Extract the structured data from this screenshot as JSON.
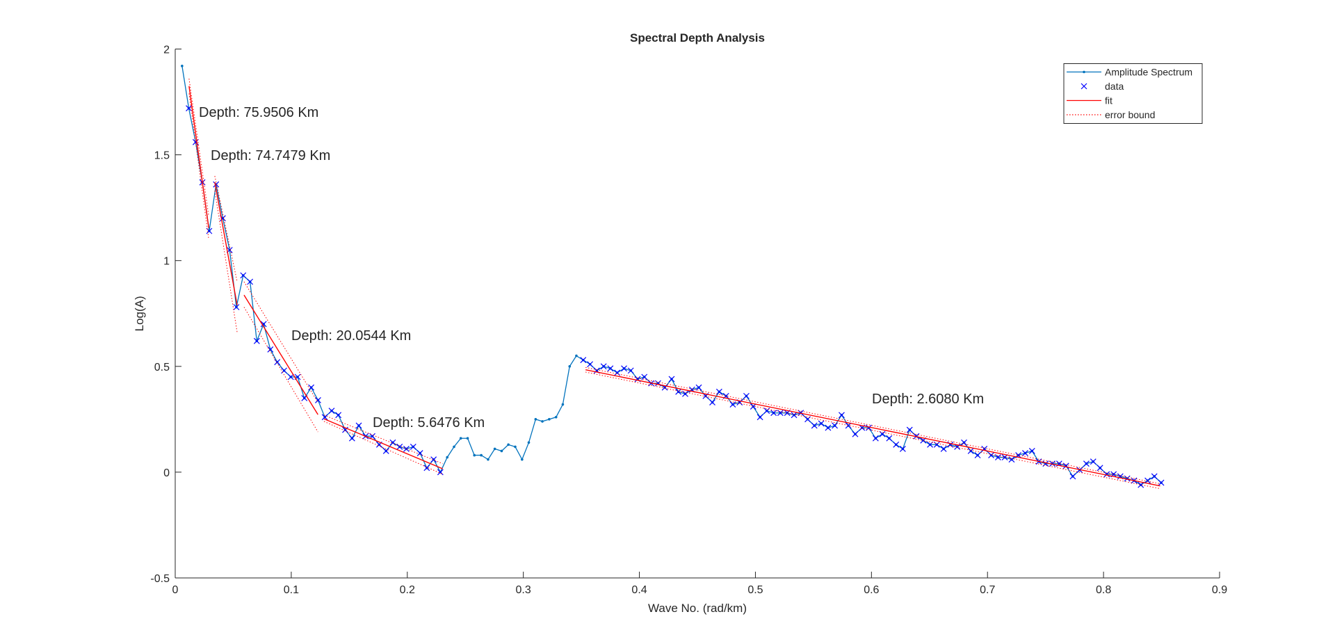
{
  "chart_data": {
    "type": "line",
    "title": "Spectral Depth Analysis",
    "xlabel": "Wave No. (rad/km)",
    "ylabel": "Log(A)",
    "xlim": [
      0,
      0.9
    ],
    "ylim": [
      -0.5,
      2
    ],
    "xticks": [
      0,
      0.1,
      0.2,
      0.3,
      0.4,
      0.5,
      0.6,
      0.7,
      0.8,
      0.9
    ],
    "yticks": [
      -0.5,
      0,
      0.5,
      1,
      1.5,
      2
    ],
    "legend": "northeast",
    "series": [
      {
        "name": "Amplitude Spectrum",
        "color": "#0072bd",
        "marker": "dot",
        "x": [
          0.0059,
          0.0117,
          0.0176,
          0.0234,
          0.0293,
          0.0352,
          0.041,
          0.0469,
          0.0527,
          0.0586,
          0.0645,
          0.0703,
          0.0762,
          0.082,
          0.0879,
          0.0938,
          0.0996,
          0.1055,
          0.1113,
          0.1172,
          0.1231,
          0.1289,
          0.1348,
          0.1406,
          0.1465,
          0.1524,
          0.1582,
          0.1641,
          0.1699,
          0.1758,
          0.1817,
          0.1875,
          0.1934,
          0.1992,
          0.2051,
          0.211,
          0.2168,
          0.2227,
          0.2285,
          0.2344,
          0.2403,
          0.2461,
          0.252,
          0.2578,
          0.2637,
          0.2696,
          0.2754,
          0.2813,
          0.2871,
          0.293,
          0.2989,
          0.3047,
          0.3106,
          0.3164,
          0.3223,
          0.3282,
          0.334,
          0.3399,
          0.3457,
          0.3516,
          0.3575,
          0.3633,
          0.3692,
          0.375,
          0.3809,
          0.3868,
          0.3926,
          0.3985,
          0.4043,
          0.4102,
          0.4161,
          0.4219,
          0.4278,
          0.4336,
          0.4395,
          0.4454,
          0.4512,
          0.4571,
          0.4629,
          0.4688,
          0.4747,
          0.4805,
          0.4864,
          0.4922,
          0.4981,
          0.504,
          0.5098,
          0.5157,
          0.5215,
          0.5274,
          0.5333,
          0.5391,
          0.545,
          0.5508,
          0.5567,
          0.5626,
          0.5684,
          0.5743,
          0.5801,
          0.586,
          0.5919,
          0.5977,
          0.6036,
          0.6094,
          0.6153,
          0.6212,
          0.627,
          0.6329,
          0.6387,
          0.6446,
          0.6505,
          0.6563,
          0.6622,
          0.668,
          0.6739,
          0.6798,
          0.6856,
          0.6915,
          0.6973,
          0.7032,
          0.7091,
          0.7149,
          0.7208,
          0.7266,
          0.7325,
          0.7384,
          0.7442,
          0.7501,
          0.7559,
          0.7618,
          0.7677,
          0.7735,
          0.7794,
          0.7852,
          0.7911,
          0.797,
          0.8028,
          0.8087,
          0.8145,
          0.8204,
          0.8263,
          0.8321,
          0.838,
          0.8438,
          0.8497
        ],
        "values": [
          1.92,
          1.72,
          1.56,
          1.37,
          1.14,
          1.36,
          1.2,
          1.05,
          0.78,
          0.93,
          0.9,
          0.62,
          0.7,
          0.58,
          0.52,
          0.48,
          0.45,
          0.45,
          0.35,
          0.4,
          0.34,
          0.26,
          0.29,
          0.27,
          0.2,
          0.16,
          0.22,
          0.17,
          0.17,
          0.13,
          0.1,
          0.14,
          0.12,
          0.11,
          0.12,
          0.09,
          0.02,
          0.06,
          0.0,
          0.07,
          0.12,
          0.16,
          0.16,
          0.08,
          0.08,
          0.06,
          0.11,
          0.1,
          0.13,
          0.12,
          0.06,
          0.14,
          0.25,
          0.24,
          0.25,
          0.26,
          0.32,
          0.5,
          0.55,
          0.53,
          0.51,
          0.48,
          0.5,
          0.49,
          0.47,
          0.49,
          0.48,
          0.44,
          0.45,
          0.42,
          0.42,
          0.4,
          0.44,
          0.38,
          0.37,
          0.39,
          0.4,
          0.36,
          0.33,
          0.38,
          0.36,
          0.32,
          0.33,
          0.36,
          0.31,
          0.26,
          0.29,
          0.28,
          0.28,
          0.28,
          0.27,
          0.28,
          0.25,
          0.22,
          0.23,
          0.21,
          0.22,
          0.27,
          0.22,
          0.18,
          0.21,
          0.21,
          0.16,
          0.18,
          0.16,
          0.13,
          0.11,
          0.2,
          0.17,
          0.15,
          0.13,
          0.13,
          0.11,
          0.13,
          0.12,
          0.14,
          0.1,
          0.08,
          0.11,
          0.08,
          0.07,
          0.07,
          0.06,
          0.08,
          0.09,
          0.1,
          0.05,
          0.04,
          0.04,
          0.04,
          0.03,
          -0.02,
          0.01,
          0.04,
          0.05,
          0.02,
          -0.01,
          -0.01,
          -0.02,
          -0.03,
          -0.04,
          -0.06,
          -0.04,
          -0.02,
          -0.05
        ]
      },
      {
        "name": "data",
        "color": "#0000ff",
        "marker": "x",
        "x": [
          0.0117,
          0.0176,
          0.0234,
          0.0293,
          0.0352,
          0.041,
          0.0469,
          0.0527,
          0.0586,
          0.0645,
          0.0703,
          0.0762,
          0.082,
          0.0879,
          0.0938,
          0.0996,
          0.1055,
          0.1113,
          0.1172,
          0.1231,
          0.1289,
          0.1348,
          0.1406,
          0.1465,
          0.1524,
          0.1582,
          0.1641,
          0.1699,
          0.1758,
          0.1817,
          0.1875,
          0.1934,
          0.1992,
          0.2051,
          0.211,
          0.2168,
          0.2227,
          0.2285,
          0.3516,
          0.3575,
          0.3633,
          0.3692,
          0.375,
          0.3809,
          0.3868,
          0.3926,
          0.3985,
          0.4043,
          0.4102,
          0.4161,
          0.4219,
          0.4278,
          0.4336,
          0.4395,
          0.4454,
          0.4512,
          0.4571,
          0.4629,
          0.4688,
          0.4747,
          0.4805,
          0.4864,
          0.4922,
          0.4981,
          0.504,
          0.5098,
          0.5157,
          0.5215,
          0.5274,
          0.5333,
          0.5391,
          0.545,
          0.5508,
          0.5567,
          0.5626,
          0.5684,
          0.5743,
          0.5801,
          0.586,
          0.5919,
          0.5977,
          0.6036,
          0.6094,
          0.6153,
          0.6212,
          0.627,
          0.6329,
          0.6387,
          0.6446,
          0.6505,
          0.6563,
          0.6622,
          0.668,
          0.6739,
          0.6798,
          0.6856,
          0.6915,
          0.6973,
          0.7032,
          0.7091,
          0.7149,
          0.7208,
          0.7266,
          0.7325,
          0.7384,
          0.7442,
          0.7501,
          0.7559,
          0.7618,
          0.7677,
          0.7735,
          0.7794,
          0.7852,
          0.7911,
          0.797,
          0.8028,
          0.8087,
          0.8145,
          0.8204,
          0.8263,
          0.8321,
          0.838,
          0.8438,
          0.8497
        ],
        "values": [
          1.72,
          1.56,
          1.37,
          1.14,
          1.36,
          1.2,
          1.05,
          0.78,
          0.93,
          0.9,
          0.62,
          0.7,
          0.58,
          0.52,
          0.48,
          0.45,
          0.45,
          0.35,
          0.4,
          0.34,
          0.26,
          0.29,
          0.27,
          0.2,
          0.16,
          0.22,
          0.17,
          0.17,
          0.13,
          0.1,
          0.14,
          0.12,
          0.11,
          0.12,
          0.09,
          0.02,
          0.06,
          0.0,
          0.53,
          0.51,
          0.48,
          0.5,
          0.49,
          0.47,
          0.49,
          0.48,
          0.44,
          0.45,
          0.42,
          0.42,
          0.4,
          0.44,
          0.38,
          0.37,
          0.39,
          0.4,
          0.36,
          0.33,
          0.38,
          0.36,
          0.32,
          0.33,
          0.36,
          0.31,
          0.26,
          0.29,
          0.28,
          0.28,
          0.28,
          0.27,
          0.28,
          0.25,
          0.22,
          0.23,
          0.21,
          0.22,
          0.27,
          0.22,
          0.18,
          0.21,
          0.21,
          0.16,
          0.18,
          0.16,
          0.13,
          0.11,
          0.2,
          0.17,
          0.15,
          0.13,
          0.13,
          0.11,
          0.13,
          0.12,
          0.14,
          0.1,
          0.08,
          0.11,
          0.08,
          0.07,
          0.07,
          0.06,
          0.08,
          0.09,
          0.1,
          0.05,
          0.04,
          0.04,
          0.04,
          0.03,
          -0.02,
          0.01,
          0.04,
          0.05,
          0.02,
          -0.01,
          -0.01,
          -0.02,
          -0.03,
          -0.04,
          -0.06,
          -0.04,
          -0.02,
          -0.05
        ]
      }
    ],
    "fit_series": {
      "name": "fit",
      "color": "#ff0000"
    },
    "bound_series": {
      "name": "error bound",
      "color": "#ff0000"
    },
    "fits": [
      {
        "label": "Depth: 75.9506 Km",
        "x": [
          0.0119,
          0.0289
        ],
        "values": [
          1.825,
          1.154
        ],
        "upper": [
          1.86,
          1.21
        ],
        "lower": [
          1.79,
          1.1
        ]
      },
      {
        "label": "Depth: 74.7479 Km",
        "x": [
          0.0341,
          0.0534
        ],
        "values": [
          1.37,
          0.789
        ],
        "upper": [
          1.4,
          0.9
        ],
        "lower": [
          1.33,
          0.66
        ]
      },
      {
        "label": "Depth: 20.0544 Km",
        "x": [
          0.0593,
          0.123
        ],
        "values": [
          0.837,
          0.272
        ],
        "upper": [
          0.9,
          0.33
        ],
        "lower": [
          0.78,
          0.19
        ]
      },
      {
        "label": "Depth: 5.6476 Km",
        "x": [
          0.1282,
          0.2305
        ],
        "values": [
          0.252,
          0.016
        ],
        "upper": [
          0.27,
          0.04
        ],
        "lower": [
          0.24,
          -0.01
        ]
      },
      {
        "label": "Depth: 2.6080 Km",
        "x": [
          0.3536,
          0.8488
        ],
        "values": [
          0.484,
          -0.065
        ],
        "upper": [
          0.495,
          -0.055
        ],
        "lower": [
          0.473,
          -0.078
        ]
      }
    ]
  }
}
